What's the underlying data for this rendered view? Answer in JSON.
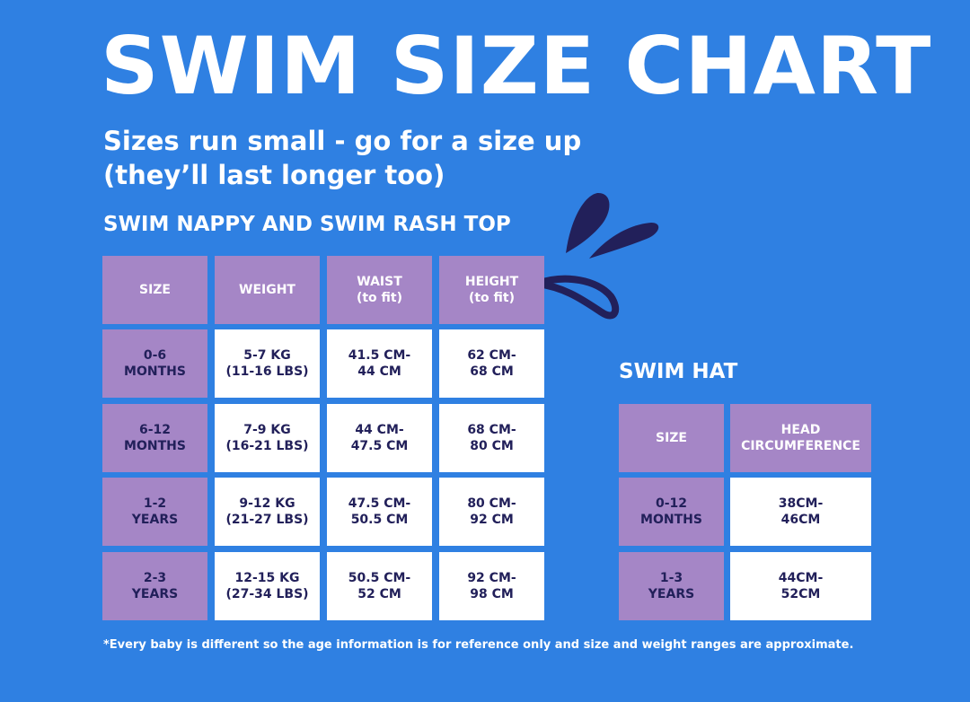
{
  "title": "SWIM SIZE CHART",
  "subtitle": [
    "Sizes run small - go for a size up",
    "(they’ll last longer too)"
  ],
  "nappy": {
    "heading": "SWIM NAPPY AND SWIM RASH TOP",
    "headers": [
      "SIZE",
      "WEIGHT",
      "WAIST\n(to fit)",
      "HEIGHT\n(to fit)"
    ],
    "rows": [
      [
        "0-6\nMONTHS",
        "5-7 KG\n(11-16 LBS)",
        "41.5 CM-\n44 CM",
        "62 CM-\n68 CM"
      ],
      [
        "6-12\nMONTHS",
        "7-9 KG\n(16-21 LBS)",
        "44 CM-\n47.5 CM",
        "68 CM-\n80 CM"
      ],
      [
        "1-2\nYEARS",
        "9-12 KG\n(21-27 LBS)",
        "47.5 CM-\n50.5 CM",
        "80 CM-\n92 CM"
      ],
      [
        "2-3\nYEARS",
        "12-15 KG\n(27-34 LBS)",
        "50.5 CM-\n52 CM",
        "92 CM-\n98 CM"
      ]
    ]
  },
  "hat": {
    "heading": "SWIM HAT",
    "headers": [
      "SIZE",
      "HEAD\nCIRCUMFERENCE"
    ],
    "rows": [
      [
        "0-12\nMONTHS",
        "38CM-\n46CM"
      ],
      [
        "1-3\nYEARS",
        "44CM-\n52CM"
      ]
    ]
  },
  "footnote": "*Every baby is different so the age information is for reference only and size and weight ranges are approximate.",
  "colors": {
    "background": "#2f80e2",
    "header": "#a586c6",
    "text_dark": "#22205a",
    "splash": "#22205a"
  }
}
